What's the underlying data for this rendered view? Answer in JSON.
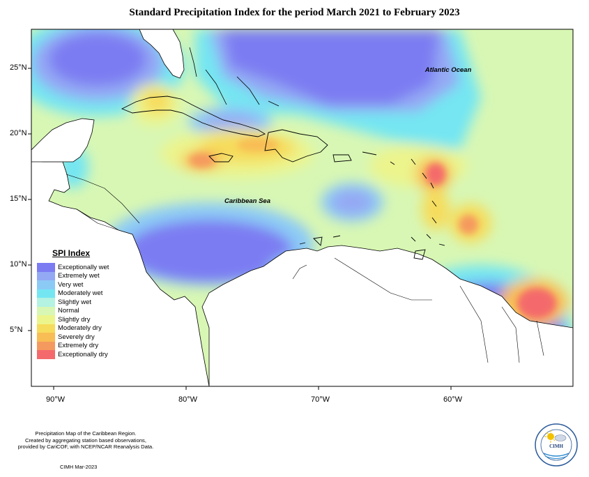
{
  "title": "Standard Precipitation Index for the period March 2021 to February 2023",
  "labels": {
    "ocean": "Atlantic Ocean",
    "sea": "Caribbean Sea"
  },
  "axes": {
    "x_ticks": [
      "90°W",
      "80°W",
      "70°W",
      "60°W"
    ],
    "y_ticks": [
      "25°N",
      "20°N",
      "15°N",
      "10°N",
      "5°N"
    ]
  },
  "legend": {
    "title": "SPI Index",
    "items": [
      {
        "label": "Exceptionally wet",
        "color": "#7b7bf2"
      },
      {
        "label": "Extremely wet",
        "color": "#94a9f4"
      },
      {
        "label": "Very wet",
        "color": "#8ccaf6"
      },
      {
        "label": "Moderately wet",
        "color": "#74e6f2"
      },
      {
        "label": "Slightly wet",
        "color": "#b4f2e2"
      },
      {
        "label": "Normal",
        "color": "#d8f7b4"
      },
      {
        "label": "Slightly dry",
        "color": "#ecf48c"
      },
      {
        "label": "Moderately dry",
        "color": "#f6dc5c"
      },
      {
        "label": "Severely dry",
        "color": "#f8bd54"
      },
      {
        "label": "Extremely dry",
        "color": "#f59a5e"
      },
      {
        "label": "Exceptionally dry",
        "color": "#f46a6c"
      }
    ]
  },
  "footnote": [
    "Precipitation Map of the Caribbean Region.",
    "Created by aggregating station based observations,",
    "provided by CariCOF, with NCEP/NCAR Reanalysis Data."
  ],
  "credit": "CIMH Mar-2023",
  "logo": {
    "text": "CIMH",
    "icon": "sun-cloud-icon"
  }
}
